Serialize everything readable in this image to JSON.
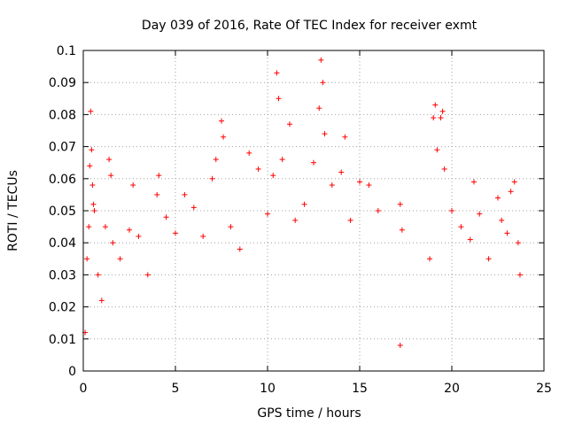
{
  "chart_data": {
    "type": "scatter",
    "title": "Day 039 of 2016, Rate Of TEC Index for receiver exmt",
    "xlabel": "GPS time / hours",
    "ylabel": "ROTI / TECUs",
    "xlim": [
      0,
      25
    ],
    "ylim": [
      0,
      0.1
    ],
    "grid": true,
    "marker": "plus",
    "marker_color": "#ff0000",
    "x_ticks": [
      0,
      5,
      10,
      15,
      20,
      25
    ],
    "x_tick_labels": [
      "0",
      "5",
      "10",
      "15",
      "20",
      "25"
    ],
    "y_ticks": [
      0,
      0.01,
      0.02,
      0.03,
      0.04,
      0.05,
      0.06,
      0.07,
      0.08,
      0.09,
      0.1
    ],
    "y_tick_labels": [
      "0",
      "0.01",
      "0.02",
      "0.03",
      "0.04",
      "0.05",
      "0.06",
      "0.07",
      "0.08",
      "0.09",
      "0.1"
    ],
    "series": [
      {
        "name": "ROTI",
        "points": [
          [
            0.1,
            0.012
          ],
          [
            0.2,
            0.035
          ],
          [
            0.3,
            0.045
          ],
          [
            0.35,
            0.064
          ],
          [
            0.4,
            0.081
          ],
          [
            0.45,
            0.069
          ],
          [
            0.5,
            0.058
          ],
          [
            0.55,
            0.052
          ],
          [
            0.6,
            0.05
          ],
          [
            0.8,
            0.03
          ],
          [
            1.0,
            0.022
          ],
          [
            1.2,
            0.045
          ],
          [
            1.4,
            0.066
          ],
          [
            1.5,
            0.061
          ],
          [
            1.6,
            0.04
          ],
          [
            2.0,
            0.035
          ],
          [
            2.5,
            0.044
          ],
          [
            2.7,
            0.058
          ],
          [
            3.0,
            0.042
          ],
          [
            3.5,
            0.03
          ],
          [
            4.0,
            0.055
          ],
          [
            4.1,
            0.061
          ],
          [
            4.5,
            0.048
          ],
          [
            5.0,
            0.043
          ],
          [
            5.5,
            0.055
          ],
          [
            6.0,
            0.051
          ],
          [
            6.5,
            0.042
          ],
          [
            7.0,
            0.06
          ],
          [
            7.2,
            0.066
          ],
          [
            7.5,
            0.078
          ],
          [
            7.6,
            0.073
          ],
          [
            8.0,
            0.045
          ],
          [
            8.5,
            0.038
          ],
          [
            9.0,
            0.068
          ],
          [
            9.5,
            0.063
          ],
          [
            10.0,
            0.049
          ],
          [
            10.3,
            0.061
          ],
          [
            10.5,
            0.093
          ],
          [
            10.6,
            0.085
          ],
          [
            10.8,
            0.066
          ],
          [
            11.2,
            0.077
          ],
          [
            11.5,
            0.047
          ],
          [
            12.0,
            0.052
          ],
          [
            12.5,
            0.065
          ],
          [
            12.8,
            0.082
          ],
          [
            12.9,
            0.097
          ],
          [
            13.0,
            0.09
          ],
          [
            13.1,
            0.074
          ],
          [
            13.5,
            0.058
          ],
          [
            14.0,
            0.062
          ],
          [
            14.2,
            0.073
          ],
          [
            14.5,
            0.047
          ],
          [
            15.0,
            0.059
          ],
          [
            15.5,
            0.058
          ],
          [
            16.0,
            0.05
          ],
          [
            17.2,
            0.052
          ],
          [
            17.3,
            0.044
          ],
          [
            17.2,
            0.008
          ],
          [
            18.8,
            0.035
          ],
          [
            19.0,
            0.079
          ],
          [
            19.1,
            0.083
          ],
          [
            19.2,
            0.069
          ],
          [
            19.4,
            0.079
          ],
          [
            19.5,
            0.081
          ],
          [
            19.6,
            0.063
          ],
          [
            20.0,
            0.05
          ],
          [
            20.5,
            0.045
          ],
          [
            21.0,
            0.041
          ],
          [
            21.2,
            0.059
          ],
          [
            21.5,
            0.049
          ],
          [
            22.0,
            0.035
          ],
          [
            22.5,
            0.054
          ],
          [
            22.7,
            0.047
          ],
          [
            23.0,
            0.043
          ],
          [
            23.2,
            0.056
          ],
          [
            23.4,
            0.059
          ],
          [
            23.6,
            0.04
          ],
          [
            23.7,
            0.03
          ]
        ]
      }
    ]
  }
}
